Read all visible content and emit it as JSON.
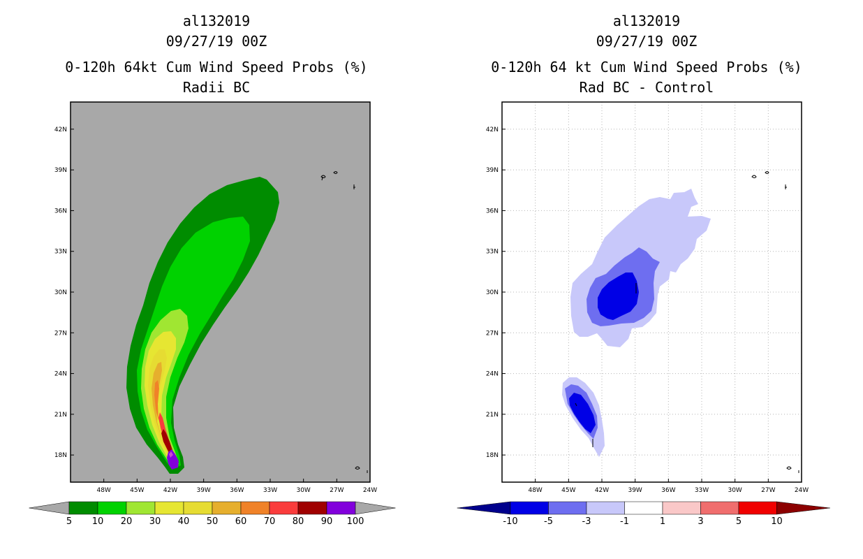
{
  "panels": [
    {
      "storm_id": "al132019",
      "datetime": "09/27/19 00Z",
      "title": "0-120h 64kt Cum Wind Speed Probs (%)",
      "subtitle": "Radii BC"
    },
    {
      "storm_id": "al132019",
      "datetime": "09/27/19 00Z",
      "title": "0-120h 64 kt Cum Wind Speed Probs (%)",
      "subtitle": "Rad BC - Control"
    }
  ],
  "chart_data": [
    {
      "type": "heatmap",
      "subtype": "filled-contour map",
      "title": "0-120h 64kt Cum Wind Speed Probs (%)",
      "subtitle": "Radii BC",
      "lon_ticks": [
        "48W",
        "45W",
        "42W",
        "39W",
        "36W",
        "33W",
        "30W",
        "27W",
        "24W"
      ],
      "lat_ticks": [
        "42N",
        "39N",
        "36N",
        "33N",
        "30N",
        "27N",
        "24N",
        "21N",
        "18N"
      ],
      "lon_range": [
        -51,
        -24
      ],
      "lat_range": [
        16,
        44
      ],
      "grid": false,
      "background": "#a8a8a8",
      "colorbar": {
        "levels": [
          "5",
          "10",
          "20",
          "30",
          "40",
          "50",
          "60",
          "70",
          "80",
          "90",
          "100"
        ],
        "colors": [
          "#008c00",
          "#00d200",
          "#a0e632",
          "#e6e632",
          "#e6dc32",
          "#e6af2d",
          "#f08228",
          "#fa3c3c",
          "#a00000",
          "#8200dc"
        ],
        "under_color": "#a8a8a8",
        "over_color": "#a8a8a8"
      },
      "max_value_location": {
        "lon": -41.3,
        "lat": 17.5,
        "value_range": "90-100"
      }
    },
    {
      "type": "heatmap",
      "subtype": "filled-contour difference map",
      "title": "0-120h 64 kt Cum Wind Speed Probs (%)",
      "subtitle": "Rad BC - Control",
      "lon_ticks": [
        "48W",
        "45W",
        "42W",
        "39W",
        "36W",
        "33W",
        "30W",
        "27W",
        "24W"
      ],
      "lat_ticks": [
        "42N",
        "39N",
        "36N",
        "33N",
        "30N",
        "27N",
        "24N",
        "21N",
        "18N"
      ],
      "lon_range": [
        -51,
        -24
      ],
      "lat_range": [
        16,
        44
      ],
      "grid": true,
      "background": "#ffffff",
      "colorbar": {
        "levels": [
          "-10",
          "-5",
          "-3",
          "-1",
          "1",
          "3",
          "5",
          "10"
        ],
        "colors": [
          "#0000e6",
          "#6e6ef0",
          "#c8c8fa",
          "#ffffff",
          "#fac8c8",
          "#f06e6e",
          "#f00000"
        ],
        "under_color": "#00008c",
        "over_color": "#8c0000"
      }
    }
  ]
}
